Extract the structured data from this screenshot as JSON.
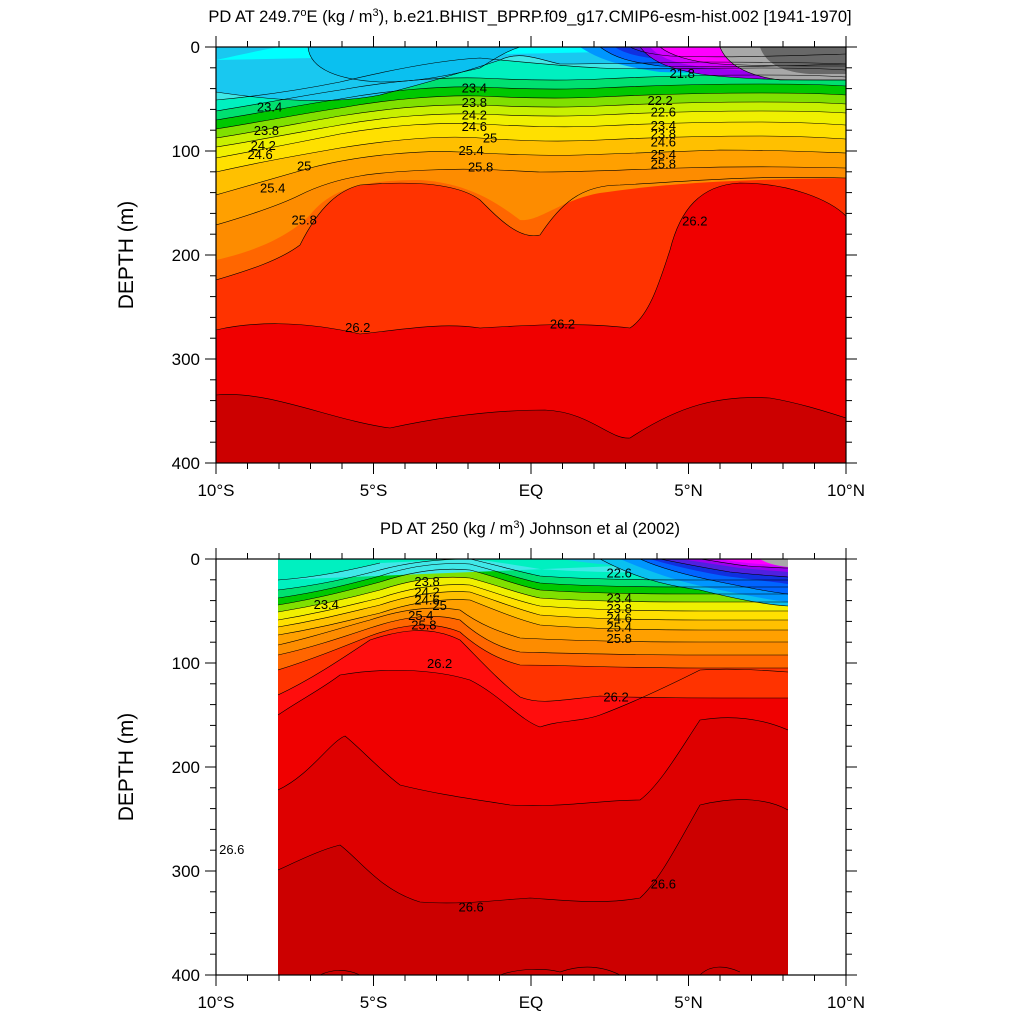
{
  "chart_data": [
    {
      "type": "contour",
      "title": "PD AT 249.7°E (kg / m³), b.e21.BHIST_BPRP.f09_g17.CMIP6-esm-hist.002 [1941-1970]",
      "title_parts": {
        "pre": "PD AT 249.7",
        "deg": "o",
        "mid": "E (kg / m",
        "sup": "3",
        "post": "), b.e21.BHIST_BPRP.f09_g17.CMIP6-esm-hist.002 [1941-1970]"
      },
      "xlabel": "",
      "ylabel": "DEPTH (m)",
      "xlim": [
        -10,
        10
      ],
      "ylim": [
        0,
        400
      ],
      "y_reversed": true,
      "x_ticks": [
        -10,
        -5,
        0,
        5,
        10
      ],
      "x_tick_labels": [
        "10°S",
        "5°S",
        "EQ",
        "5°N",
        "10°N"
      ],
      "y_ticks": [
        0,
        100,
        200,
        300,
        400
      ],
      "y_tick_labels": [
        "0",
        "100",
        "200",
        "300",
        "400"
      ],
      "contour_interval": 0.2,
      "contour_labels": [
        {
          "x": -8.3,
          "y": 58,
          "text": "23.4"
        },
        {
          "x": -8.4,
          "y": 81,
          "text": "23.8"
        },
        {
          "x": -8.5,
          "y": 95,
          "text": "24.2"
        },
        {
          "x": -8.6,
          "y": 104,
          "text": "24.6"
        },
        {
          "x": -7.2,
          "y": 115,
          "text": "25"
        },
        {
          "x": -8.2,
          "y": 136,
          "text": "25.4"
        },
        {
          "x": -7.2,
          "y": 167,
          "text": "25.8"
        },
        {
          "x": -5.5,
          "y": 270,
          "text": "26.2"
        },
        {
          "x": 1.0,
          "y": 267,
          "text": "26.2"
        },
        {
          "x": 5.2,
          "y": 168,
          "text": "26.2"
        },
        {
          "x": -1.8,
          "y": 40,
          "text": "23.4"
        },
        {
          "x": -1.8,
          "y": 54,
          "text": "23.8"
        },
        {
          "x": -1.8,
          "y": 66,
          "text": "24.2"
        },
        {
          "x": -1.8,
          "y": 77,
          "text": "24.6"
        },
        {
          "x": -1.3,
          "y": 88,
          "text": "25"
        },
        {
          "x": -1.9,
          "y": 100,
          "text": "25.4"
        },
        {
          "x": -1.6,
          "y": 116,
          "text": "25.8"
        },
        {
          "x": 4.8,
          "y": 26,
          "text": "21.8"
        },
        {
          "x": 4.1,
          "y": 52,
          "text": "22.2"
        },
        {
          "x": 4.2,
          "y": 63,
          "text": "22.6"
        },
        {
          "x": 4.2,
          "y": 76,
          "text": "23.4"
        },
        {
          "x": 4.2,
          "y": 84,
          "text": "23.8"
        },
        {
          "x": 4.2,
          "y": 92,
          "text": "24.6"
        },
        {
          "x": 4.2,
          "y": 104,
          "text": "25.4"
        },
        {
          "x": 4.2,
          "y": 113,
          "text": "25.8"
        }
      ]
    },
    {
      "type": "contour",
      "title": "PD AT 250 (kg / m³) Johnson et al (2002)",
      "title_parts": {
        "pre": "PD AT 250 (kg / m",
        "sup": "3",
        "post": ") Johnson et al (2002)"
      },
      "xlabel": "",
      "ylabel": "DEPTH (m)",
      "xlim": [
        -10,
        10
      ],
      "ylim": [
        0,
        400
      ],
      "y_reversed": true,
      "data_xrange": [
        -8,
        8.2
      ],
      "x_ticks": [
        -10,
        -5,
        0,
        5,
        10
      ],
      "x_tick_labels": [
        "10°S",
        "5°S",
        "EQ",
        "5°N",
        "10°N"
      ],
      "y_ticks": [
        0,
        100,
        200,
        300,
        400
      ],
      "y_tick_labels": [
        "0",
        "100",
        "200",
        "300",
        "400"
      ],
      "contour_interval": 0.2,
      "contour_labels": [
        {
          "x": -6.5,
          "y": 44,
          "text": "23.4"
        },
        {
          "x": -3.3,
          "y": 22,
          "text": "23.8"
        },
        {
          "x": -3.3,
          "y": 32,
          "text": "24.2"
        },
        {
          "x": -3.3,
          "y": 40,
          "text": "24.6"
        },
        {
          "x": -2.9,
          "y": 45,
          "text": "25"
        },
        {
          "x": -3.5,
          "y": 55,
          "text": "25.4"
        },
        {
          "x": -3.4,
          "y": 64,
          "text": "25.8"
        },
        {
          "x": -2.9,
          "y": 101,
          "text": "26.2"
        },
        {
          "x": 2.7,
          "y": 133,
          "text": "26.2"
        },
        {
          "x": 2.8,
          "y": 14,
          "text": "22.6"
        },
        {
          "x": 2.8,
          "y": 38,
          "text": "23.4"
        },
        {
          "x": 2.8,
          "y": 48,
          "text": "23.8"
        },
        {
          "x": 2.8,
          "y": 57,
          "text": "24.6"
        },
        {
          "x": 2.8,
          "y": 66,
          "text": "25.4"
        },
        {
          "x": 2.8,
          "y": 77,
          "text": "25.8"
        },
        {
          "x": -9.5,
          "y": 280,
          "text": "26.6"
        },
        {
          "x": -1.9,
          "y": 335,
          "text": "26.6"
        },
        {
          "x": 4.2,
          "y": 313,
          "text": "26.6"
        }
      ]
    }
  ]
}
